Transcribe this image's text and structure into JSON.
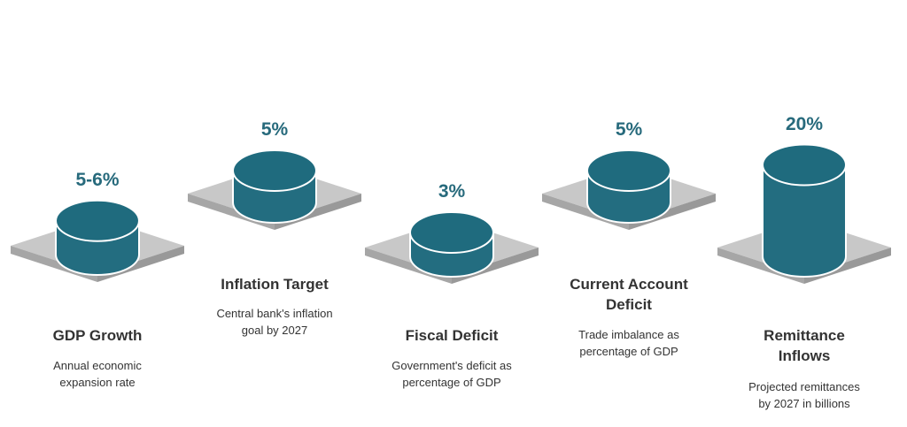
{
  "colors": {
    "cylinder": "#236d80",
    "cylinder_top": "#1f6b7e",
    "cylinder_outline": "#ffffff",
    "platform_top": "#c8c8c8",
    "platform_side": "#a6a6a6",
    "value_text": "#276a7c",
    "label_text": "#333333"
  },
  "chart_data": {
    "type": "bar",
    "style": "3d-cylinder",
    "title": "",
    "categories": [
      "GDP Growth",
      "Inflation Target",
      "Fiscal Deficit",
      "Current Account Deficit",
      "Remittance Inflows"
    ],
    "series": [
      {
        "values": [
          5.5,
          5,
          3,
          5,
          20
        ],
        "value_labels": [
          "5-6%",
          "5%",
          "3%",
          "5%",
          "20%"
        ]
      }
    ],
    "descriptions": [
      "Annual economic expansion rate",
      "Central bank's inflation goal by 2027",
      "Government's deficit as percentage of GDP",
      "Trade imbalance as percentage of GDP",
      "Projected remittances by 2027 in billions"
    ]
  }
}
